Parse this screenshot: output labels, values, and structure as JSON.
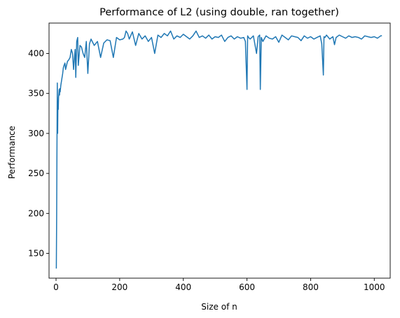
{
  "chart_data": {
    "type": "line",
    "title": "Performance of L2 (using double, ran together)",
    "xlabel": "Size of n",
    "ylabel": "Performance",
    "xlim": [
      -22,
      1050
    ],
    "ylim": [
      119,
      438
    ],
    "xticks": [
      0,
      200,
      400,
      600,
      800,
      1000
    ],
    "yticks": [
      150,
      200,
      250,
      300,
      350,
      400
    ],
    "grid": false,
    "series": [
      {
        "color": "#1f77b4",
        "x": [
          1,
          2,
          3,
          4,
          5,
          6,
          7,
          8,
          9,
          10,
          11,
          12,
          13,
          15,
          17,
          19,
          21,
          23,
          25,
          28,
          30,
          33,
          36,
          40,
          44,
          48,
          52,
          55,
          58,
          60,
          62,
          65,
          68,
          70,
          75,
          80,
          85,
          90,
          95,
          100,
          105,
          110,
          120,
          130,
          140,
          150,
          160,
          170,
          180,
          190,
          200,
          210,
          215,
          220,
          225,
          230,
          240,
          250,
          260,
          270,
          280,
          290,
          300,
          310,
          320,
          330,
          340,
          350,
          360,
          370,
          380,
          390,
          400,
          410,
          420,
          430,
          440,
          450,
          460,
          470,
          480,
          490,
          500,
          510,
          520,
          530,
          540,
          550,
          560,
          570,
          580,
          590,
          595,
          600,
          602,
          605,
          610,
          620,
          630,
          635,
          640,
          642,
          645,
          650,
          660,
          670,
          680,
          690,
          700,
          710,
          720,
          730,
          740,
          750,
          760,
          770,
          780,
          790,
          800,
          810,
          820,
          830,
          835,
          840,
          842,
          845,
          850,
          860,
          870,
          875,
          880,
          890,
          900,
          910,
          920,
          930,
          940,
          950,
          960,
          970,
          980,
          990,
          1000,
          1010,
          1020,
          1024
        ],
        "y": [
          131,
          200,
          295,
          363,
          300,
          340,
          330,
          345,
          350,
          355,
          348,
          356,
          352,
          360,
          365,
          370,
          375,
          382,
          385,
          388,
          380,
          385,
          390,
          392,
          395,
          405,
          400,
          380,
          395,
          405,
          370,
          415,
          420,
          385,
          410,
          408,
          400,
          395,
          415,
          375,
          412,
          418,
          410,
          415,
          395,
          413,
          417,
          416,
          395,
          420,
          417,
          418,
          420,
          428,
          425,
          418,
          427,
          410,
          425,
          418,
          422,
          415,
          420,
          400,
          423,
          420,
          425,
          422,
          428,
          418,
          422,
          420,
          424,
          421,
          418,
          422,
          428,
          420,
          422,
          419,
          423,
          418,
          421,
          420,
          423,
          415,
          420,
          422,
          418,
          421,
          419,
          420,
          415,
          355,
          422,
          420,
          418,
          422,
          400,
          421,
          423,
          355,
          420,
          415,
          422,
          419,
          418,
          421,
          414,
          423,
          420,
          417,
          422,
          421,
          420,
          416,
          422,
          419,
          421,
          418,
          420,
          422,
          412,
          373,
          421,
          420,
          423,
          418,
          421,
          411,
          420,
          423,
          421,
          419,
          422,
          420,
          421,
          420,
          418,
          422,
          421,
          420,
          421,
          419,
          422,
          422
        ]
      }
    ]
  }
}
